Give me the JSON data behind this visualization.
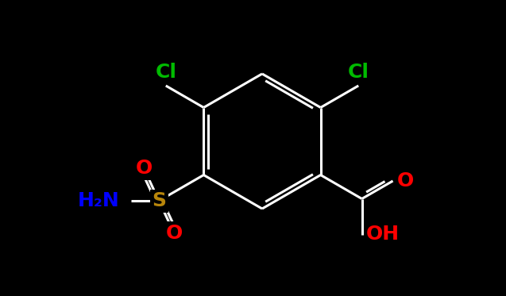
{
  "background_color": "#000000",
  "bond_color": "#000000",
  "line_color": "#1a1a1a",
  "white": "#ffffff",
  "figsize": [
    6.37,
    3.73
  ],
  "dpi": 100,
  "colors": {
    "O": "#ff0000",
    "N": "#0000ff",
    "S": "#b8860b",
    "Cl": "#00bb00",
    "C": "#000000",
    "bond": "#ffffff"
  }
}
